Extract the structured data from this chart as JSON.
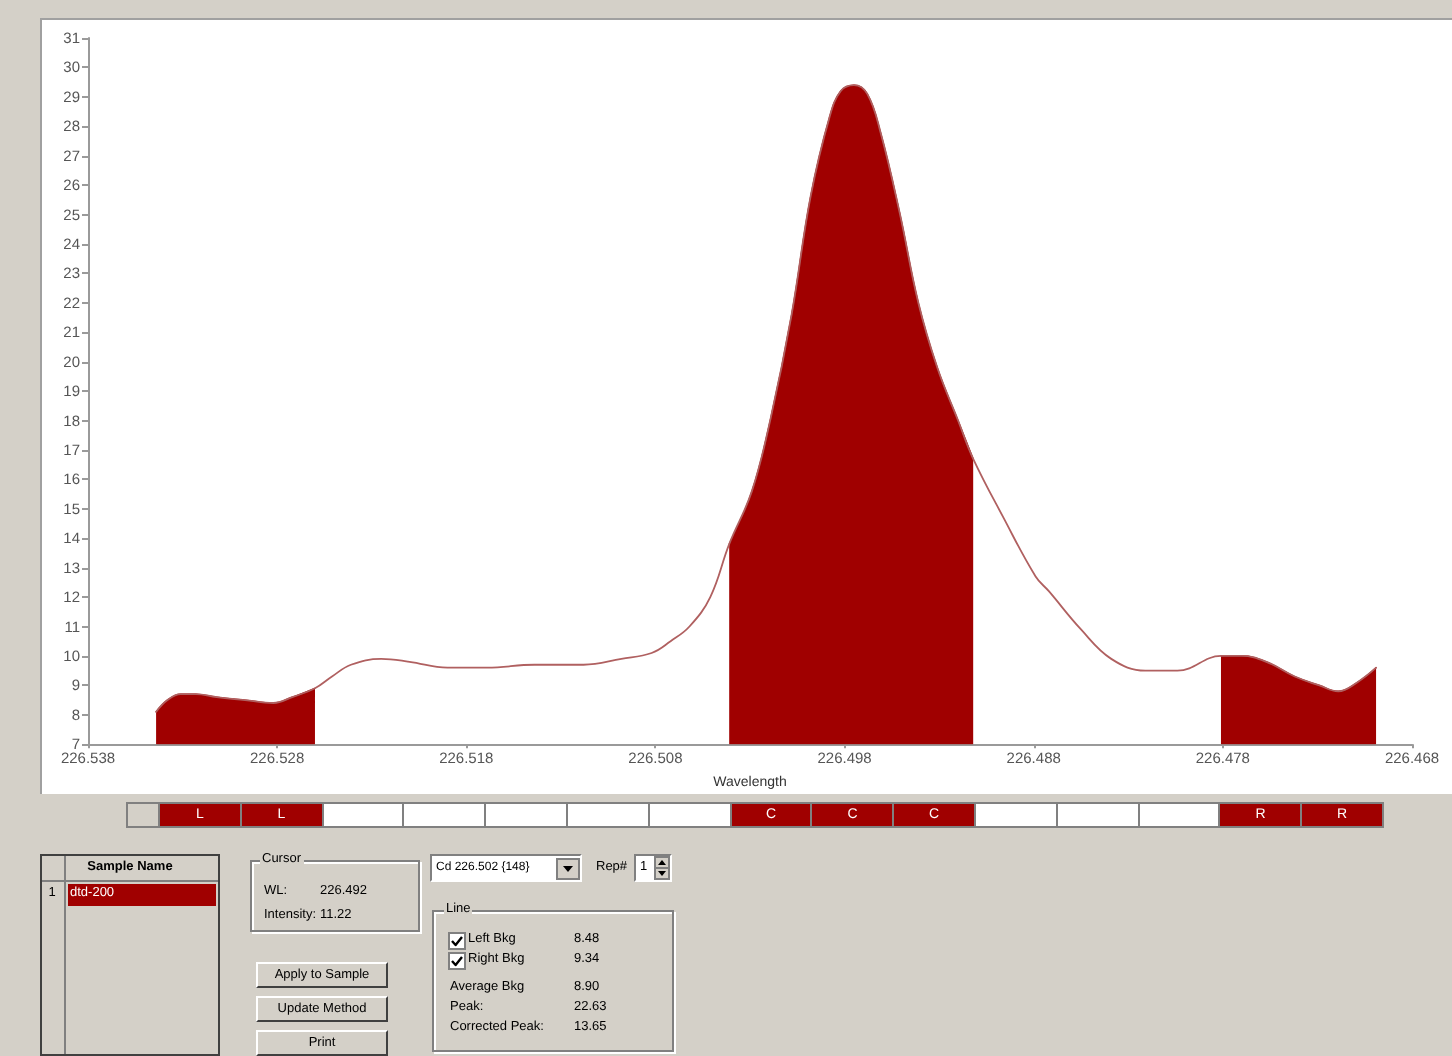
{
  "chart_data": [
    {
      "type": "line",
      "xlabel": "Wavelength",
      "xlim": [
        226.538,
        226.468
      ],
      "xticks": [
        226.538,
        226.528,
        226.518,
        226.508,
        226.498,
        226.488,
        226.478,
        226.468
      ],
      "ylim": [
        7,
        31
      ],
      "yticks": [
        7,
        8,
        9,
        10,
        11,
        12,
        13,
        14,
        15,
        16,
        17,
        18,
        19,
        20,
        21,
        22,
        23,
        24,
        25,
        26,
        27,
        28,
        29,
        30,
        31
      ],
      "marker": "none",
      "series": [
        {
          "type": "area",
          "color": "#a00000",
          "x": [
            226.5344,
            226.5338,
            226.5331,
            226.5323,
            226.5312,
            226.5297,
            226.5282,
            226.5272,
            226.526
          ],
          "values": [
            8.1,
            8.5,
            8.7,
            8.7,
            8.6,
            8.5,
            8.4,
            8.6,
            8.9
          ]
        },
        {
          "type": "area",
          "color": "#a00000",
          "x": [
            226.5041,
            226.5029,
            226.5019,
            226.5008,
            226.4998,
            226.4988,
            226.4982,
            226.4975,
            226.4968,
            226.4961,
            226.4951,
            226.4941,
            226.4931,
            226.492,
            226.4912
          ],
          "values": [
            13.8,
            15.6,
            18.1,
            21.6,
            25.6,
            28.3,
            29.2,
            29.4,
            29.1,
            27.8,
            25.1,
            22.0,
            19.8,
            18.0,
            16.7
          ]
        },
        {
          "type": "area",
          "color": "#a00000",
          "x": [
            226.4781,
            226.477,
            226.4757,
            226.4742,
            226.4729,
            226.4719,
            226.4709,
            226.4699
          ],
          "values": [
            10.0,
            10.0,
            9.8,
            9.3,
            9.0,
            8.8,
            9.1,
            9.6
          ]
        },
        {
          "type": "line",
          "color": "#b06060",
          "x": [
            226.5344,
            226.5338,
            226.5331,
            226.5323,
            226.5312,
            226.5297,
            226.5282,
            226.5272,
            226.526,
            226.5251,
            226.5241,
            226.5225,
            226.521,
            226.519,
            226.5169,
            226.5144,
            226.5118,
            226.5098,
            226.5082,
            226.5072,
            226.5062,
            226.5051,
            226.5041,
            226.5029,
            226.5019,
            226.5008,
            226.4998,
            226.4988,
            226.4982,
            226.4975,
            226.4968,
            226.4961,
            226.4951,
            226.4941,
            226.4931,
            226.492,
            226.4912,
            226.4896,
            226.4879,
            226.4872,
            226.4855,
            226.4839,
            226.4821,
            226.4804,
            226.4781,
            226.477,
            226.4757,
            226.4742,
            226.4729,
            226.4719,
            226.4709,
            226.4699
          ],
          "values": [
            8.1,
            8.5,
            8.7,
            8.7,
            8.6,
            8.5,
            8.4,
            8.6,
            8.9,
            9.3,
            9.7,
            9.9,
            9.8,
            9.6,
            9.6,
            9.7,
            9.7,
            9.9,
            10.1,
            10.5,
            11.0,
            12.0,
            13.8,
            15.6,
            18.1,
            21.6,
            25.6,
            28.3,
            29.2,
            29.4,
            29.1,
            27.8,
            25.1,
            22.0,
            19.8,
            18.0,
            16.7,
            14.7,
            12.7,
            12.2,
            10.9,
            9.9,
            9.5,
            9.5,
            10.0,
            10.0,
            9.8,
            9.3,
            9.0,
            8.8,
            9.1,
            9.6
          ]
        }
      ]
    },
    {
      "type": "other",
      "categories": [
        "L",
        "L",
        null,
        null,
        null,
        null,
        null,
        "C",
        "C",
        "C",
        null,
        null,
        null,
        "R",
        "R"
      ],
      "colors": [
        "#a00000",
        "#a00000",
        "#ffffff",
        "#ffffff",
        "#ffffff",
        "#ffffff",
        "#ffffff",
        "#a00000",
        "#a00000",
        "#a00000",
        "#ffffff",
        "#ffffff",
        "#ffffff",
        "#a00000",
        "#a00000"
      ],
      "annotations": [
        "Sample Name",
        "1",
        "dtd-200",
        "Cursor",
        "WL:",
        "226.492",
        "Intensity:",
        "11.22",
        "Apply to Sample",
        "Update Method",
        "Print",
        "Cd 226.502 {148}",
        "Rep#",
        "1",
        "Line",
        "Left Bkg",
        "8.48",
        "Right Bkg",
        "9.34",
        "Average Bkg",
        "8.90",
        "Peak:",
        "22.63",
        "Corrected Peak:",
        "13.65"
      ]
    }
  ]
}
